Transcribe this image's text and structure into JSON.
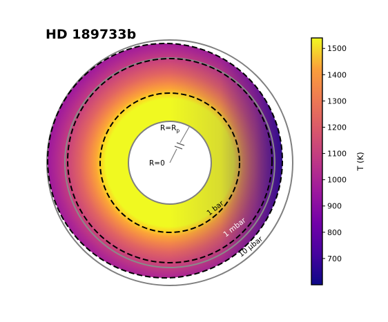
{
  "figure": {
    "title": "HD 189733b",
    "labels": {
      "inner_radius": "R=0",
      "planet_radius_main": "R=R",
      "planet_radius_sub": "p",
      "level_1bar": "1 bar",
      "level_1mbar": "1 mbar",
      "level_10ubar": "10 μbar"
    },
    "colorbar": {
      "label": "T (K)",
      "min": 600,
      "max": 1540,
      "ticks": [
        "700",
        "800",
        "900",
        "1000",
        "1100",
        "1200",
        "1300",
        "1400",
        "1500"
      ],
      "colormap": "plasma"
    },
    "colors": {
      "isobar_line": "#000000",
      "outer_circle": "#7f7f7f",
      "planet_interior": "#ffffff"
    }
  }
}
